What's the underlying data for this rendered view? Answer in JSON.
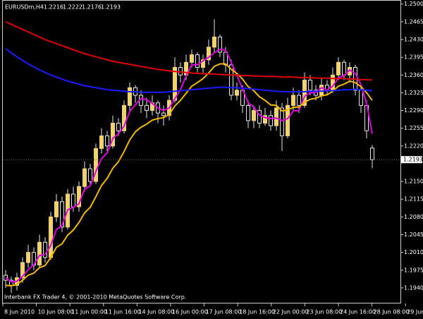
{
  "chart_data": {
    "type": "candlestick",
    "title": "EURUSDm,H4",
    "footer": "Interbank FX Trader 4, © 2001-2010 MetaQuotes Software Corp.",
    "x_labels": [
      "8 Jun 2010",
      "10 Jun 08:00",
      "11 Jun 00:00",
      "11 Jun 16:00",
      "14 Jun 08:00",
      "16 Jun 00:00",
      "17 Jun 08:00",
      "18 Jun 16:00",
      "22 Jun 00:00",
      "23 Jun 08:00",
      "24 Jun 16:00",
      "28 Jun 08:00",
      "29 Jun 08:00"
    ],
    "open": [
      1.1965,
      1.1955,
      1.1945,
      1.196,
      1.199,
      1.201,
      1.1985,
      1.203,
      1.2,
      1.208,
      1.211,
      1.206,
      1.2125,
      1.21,
      1.214,
      1.2175,
      1.215,
      1.2215,
      1.224,
      1.222,
      1.2265,
      1.225,
      1.23,
      1.2335,
      1.232,
      1.23,
      1.229,
      1.2305,
      1.2285,
      1.228,
      1.231,
      1.2375,
      1.236,
      1.2385,
      1.24,
      1.2375,
      1.239,
      1.2415,
      1.2435,
      1.2405,
      1.238,
      1.232,
      1.233,
      1.23,
      1.227,
      1.229,
      1.2265,
      1.228,
      1.226,
      1.2295,
      1.224,
      1.23,
      1.232,
      1.23,
      1.235,
      1.233,
      1.232,
      1.234,
      1.233,
      1.236,
      1.2385,
      1.236,
      1.2375,
      1.233,
      1.23,
      1.2216
    ],
    "high": [
      1.1975,
      1.1962,
      1.197,
      1.2,
      1.2025,
      1.202,
      1.2045,
      1.204,
      1.209,
      1.2125,
      1.212,
      1.2135,
      1.214,
      1.215,
      1.219,
      1.2185,
      1.2225,
      1.2255,
      1.225,
      1.228,
      1.2275,
      1.231,
      1.2345,
      1.234,
      1.233,
      1.2315,
      1.232,
      1.231,
      1.23,
      1.232,
      1.2395,
      1.2385,
      1.24,
      1.241,
      1.2405,
      1.24,
      1.243,
      1.247,
      1.244,
      1.2415,
      1.239,
      1.2345,
      1.234,
      1.231,
      1.23,
      1.23,
      1.2295,
      1.229,
      1.231,
      1.2305,
      1.2315,
      1.2335,
      1.233,
      1.2365,
      1.236,
      1.234,
      1.2355,
      1.235,
      1.2375,
      1.2395,
      1.239,
      1.2385,
      1.238,
      1.234,
      1.231,
      1.2222
    ],
    "low": [
      1.194,
      1.193,
      1.1935,
      1.195,
      1.198,
      1.1975,
      1.1978,
      1.199,
      1.1995,
      1.207,
      1.205,
      1.2055,
      1.209,
      1.209,
      1.213,
      1.214,
      1.2145,
      1.2205,
      1.221,
      1.2215,
      1.224,
      1.2245,
      1.229,
      1.2305,
      1.2285,
      1.2275,
      1.228,
      1.2265,
      1.226,
      1.227,
      1.2305,
      1.2345,
      1.235,
      1.2375,
      1.2365,
      1.2365,
      1.238,
      1.2405,
      1.2395,
      1.2365,
      1.231,
      1.231,
      1.2285,
      1.2255,
      1.2255,
      1.2255,
      1.226,
      1.225,
      1.225,
      1.221,
      1.2235,
      1.229,
      1.2285,
      1.2295,
      1.232,
      1.231,
      1.231,
      1.232,
      1.2325,
      1.235,
      1.235,
      1.2345,
      1.232,
      1.2285,
      1.2235,
      1.2176
    ],
    "close": [
      1.1955,
      1.1945,
      1.196,
      1.199,
      1.201,
      1.1985,
      1.203,
      1.2,
      1.208,
      1.211,
      1.206,
      1.2125,
      1.21,
      1.214,
      1.2175,
      1.215,
      1.2215,
      1.224,
      1.222,
      1.2265,
      1.225,
      1.23,
      1.2335,
      1.232,
      1.23,
      1.229,
      1.2305,
      1.2285,
      1.228,
      1.231,
      1.2375,
      1.236,
      1.2385,
      1.24,
      1.2375,
      1.239,
      1.2415,
      1.2435,
      1.2405,
      1.238,
      1.232,
      1.233,
      1.23,
      1.227,
      1.229,
      1.2265,
      1.228,
      1.226,
      1.2295,
      1.224,
      1.23,
      1.232,
      1.23,
      1.235,
      1.233,
      1.232,
      1.234,
      1.233,
      1.236,
      1.2385,
      1.236,
      1.2375,
      1.233,
      1.23,
      1.225,
      1.2193
    ],
    "up_color": "#f2d36b",
    "down_color": "#000000",
    "wick_color": "#e6e6e6",
    "series": [
      {
        "color": "#e000e0",
        "values": [
          1.196,
          1.1952,
          1.1953,
          1.1963,
          1.1976,
          1.1986,
          1.2004,
          1.2006,
          1.2024,
          1.2055,
          1.2063,
          1.2094,
          1.2099,
          1.2106,
          1.2135,
          1.2141,
          1.217,
          1.2195,
          1.2206,
          1.2235,
          1.2244,
          1.2259,
          1.2288,
          1.2301,
          1.2314,
          1.2311,
          1.2304,
          1.2295,
          1.229,
          1.2295,
          1.2313,
          1.2331,
          1.2358,
          1.238,
          1.238,
          1.2388,
          1.2395,
          1.2404,
          1.2411,
          1.2409,
          1.2385,
          1.2359,
          1.2333,
          1.2305,
          1.2297,
          1.2281,
          1.2276,
          1.2274,
          1.2275,
          1.227,
          1.2274,
          1.2289,
          1.229,
          1.2318,
          1.2325,
          1.2325,
          1.2335,
          1.233,
          1.2338,
          1.2354,
          1.2359,
          1.237,
          1.2363,
          1.2341,
          1.2304,
          1.2244
        ]
      },
      {
        "color": "#f5b800",
        "values": [
          1.1945,
          1.1944,
          1.1947,
          1.1955,
          1.1965,
          1.1969,
          1.198,
          1.1984,
          1.2,
          1.202,
          1.2027,
          1.2044,
          1.2054,
          1.2069,
          1.2088,
          1.2099,
          1.212,
          1.2142,
          1.2156,
          1.2176,
          1.2189,
          1.2209,
          1.2232,
          1.2248,
          1.2257,
          1.2263,
          1.2271,
          1.2274,
          1.2276,
          1.2282,
          1.2299,
          1.231,
          1.2324,
          1.2338,
          1.2345,
          1.2353,
          1.2364,
          1.2377,
          1.2382,
          1.2382,
          1.2371,
          1.2363,
          1.2352,
          1.2337,
          1.2329,
          1.2317,
          1.231,
          1.2301,
          1.23,
          1.2289,
          1.2291,
          1.2296,
          1.2297,
          1.2306,
          1.2312,
          1.2314,
          1.2319,
          1.2321,
          1.2328,
          1.2338,
          1.2342,
          1.2348,
          1.2345,
          1.2337,
          1.2325,
          1.231
        ]
      },
      {
        "color": "#1a1aff",
        "values": [
          1.2412,
          1.2404,
          1.2396,
          1.2389,
          1.2382,
          1.2376,
          1.237,
          1.2365,
          1.236,
          1.2356,
          1.2352,
          1.2348,
          1.2345,
          1.2342,
          1.2339,
          1.2337,
          1.2335,
          1.2333,
          1.2331,
          1.233,
          1.2329,
          1.2328,
          1.2327,
          1.2327,
          1.2326,
          1.2326,
          1.2326,
          1.2326,
          1.2326,
          1.2327,
          1.2328,
          1.2329,
          1.233,
          1.2331,
          1.2332,
          1.2333,
          1.2334,
          1.2335,
          1.2336,
          1.2336,
          1.2335,
          1.2335,
          1.2334,
          1.2333,
          1.2332,
          1.2331,
          1.233,
          1.2329,
          1.2328,
          1.2327,
          1.2327,
          1.2327,
          1.2327,
          1.2327,
          1.2328,
          1.2328,
          1.2328,
          1.2329,
          1.2329,
          1.233,
          1.2331,
          1.2331,
          1.2332,
          1.2331,
          1.233,
          1.2329
        ]
      },
      {
        "color": "#e00000",
        "values": [
          1.2465,
          1.246,
          1.2455,
          1.245,
          1.2445,
          1.244,
          1.2435,
          1.243,
          1.2426,
          1.2422,
          1.2418,
          1.2414,
          1.241,
          1.2406,
          1.2402,
          1.2399,
          1.2396,
          1.2393,
          1.239,
          1.2387,
          1.2385,
          1.2383,
          1.2381,
          1.2379,
          1.2377,
          1.2375,
          1.2373,
          1.2371,
          1.237,
          1.2368,
          1.2367,
          1.2366,
          1.2365,
          1.2364,
          1.2363,
          1.2363,
          1.2362,
          1.2362,
          1.2361,
          1.2361,
          1.236,
          1.236,
          1.2359,
          1.2359,
          1.2358,
          1.2358,
          1.2357,
          1.2357,
          1.2357,
          1.2356,
          1.2356,
          1.2356,
          1.2355,
          1.2355,
          1.2355,
          1.2354,
          1.2354,
          1.2354,
          1.2353,
          1.2353,
          1.2353,
          1.2352,
          1.2352,
          1.2351,
          1.2351,
          1.235
        ]
      }
    ],
    "ylim": [
      1.1912,
      1.2508
    ],
    "yticks": [
      {
        "value": 1.25,
        "label": "1.2500"
      },
      1.2465,
      {
        "value": 1.243,
        "label": "1.2430"
      },
      1.2395,
      {
        "value": 1.236,
        "label": "1.2360"
      },
      1.2325,
      {
        "value": 1.229,
        "label": "1.2290"
      },
      1.2255,
      {
        "value": 1.222,
        "label": "1.2220"
      },
      {
        "value": 1.215,
        "label": "1.2150"
      },
      1.2115,
      {
        "value": 1.208,
        "label": "1.2080"
      },
      1.2045,
      {
        "value": 1.201,
        "label": "1.2010"
      },
      1.1975,
      {
        "value": 1.194,
        "label": "1.1940"
      }
    ],
    "grid": false
  }
}
